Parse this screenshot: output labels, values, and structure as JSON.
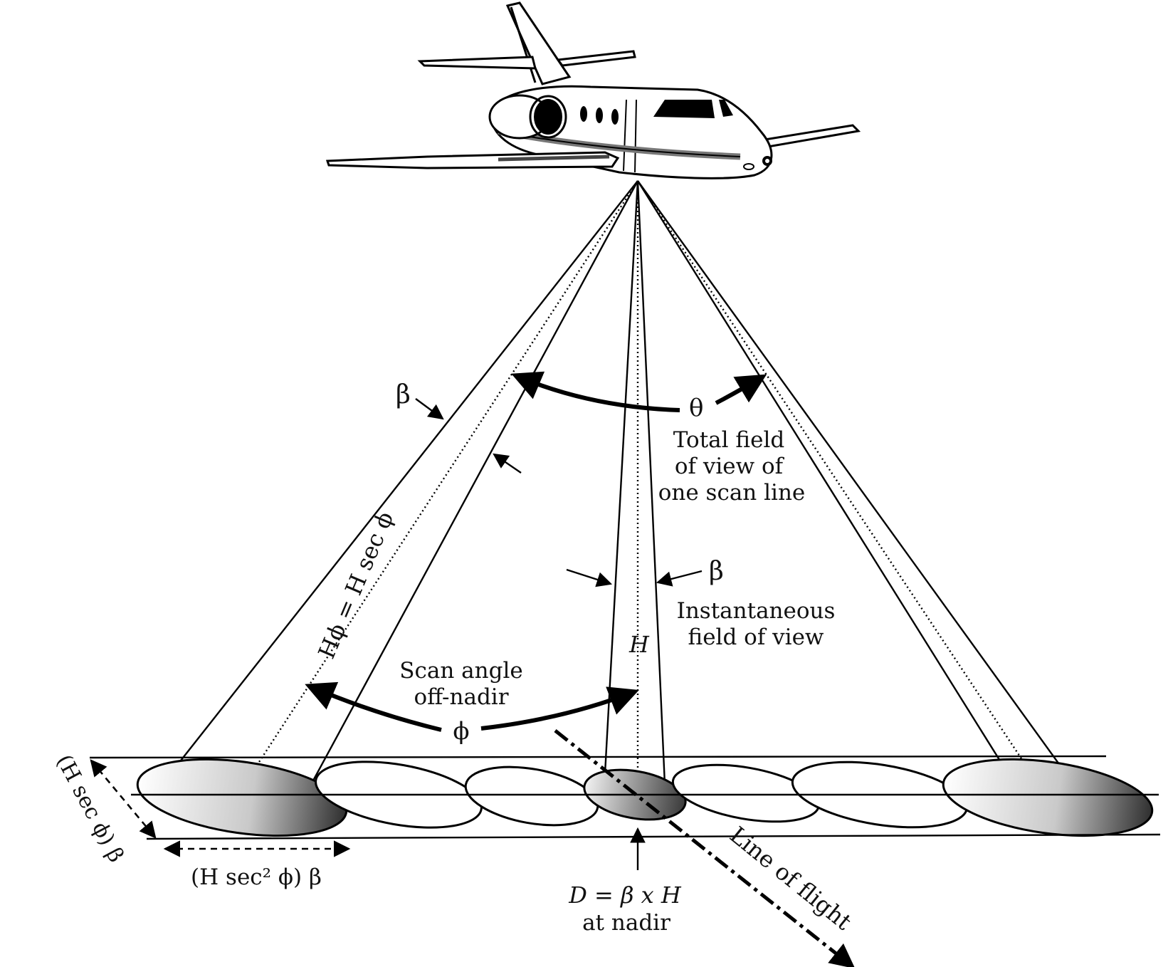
{
  "labels": {
    "beta_left": "β",
    "beta_right": "β",
    "theta": "θ",
    "total_fov_1": "Total field",
    "total_fov_2": "of view of",
    "total_fov_3": "one scan line",
    "h_phi_eq": "Hϕ = H sec ϕ",
    "ifov_1": "Instantaneous",
    "ifov_2": "field of view",
    "h_altitude": "H",
    "scan_angle_1": "Scan angle",
    "scan_angle_2": "off-nadir",
    "phi": "ϕ",
    "side_dim": "(H sec ϕ) β",
    "bottom_dim": "(H sec² ϕ) β",
    "nadir_eq": "D = β x H",
    "nadir_note": "at nadir",
    "line_of_flight": "Line of flight"
  },
  "colors": {
    "ink": "#000000",
    "background": "#ffffff",
    "fuselage": "#ffffff",
    "footprint_dark": "#444444"
  }
}
